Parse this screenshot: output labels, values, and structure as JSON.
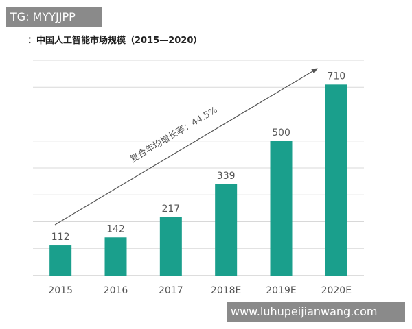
{
  "overlay": {
    "tag_text": "TG: MYYJJPP",
    "url_text": "www.luhupeijianwang.com"
  },
  "colors": {
    "bar": "#1a9f8c",
    "grid": "#d8d8d8",
    "arrow": "#555555",
    "overlay_bg": "#8a8a8a"
  },
  "chart_data": {
    "type": "bar",
    "title": "：中国人工智能市场规模（2015—2020）",
    "categories": [
      "2015",
      "2016",
      "2017",
      "2018E",
      "2019E",
      "2020E"
    ],
    "values": [
      112,
      142,
      217,
      339,
      500,
      710
    ],
    "value_labels": [
      "112",
      "142",
      "217",
      "339",
      "500",
      "710"
    ],
    "annotation": "复合年均增长率：44.5%",
    "ylim": [
      0,
      800
    ],
    "grid": true,
    "legend": "none"
  }
}
